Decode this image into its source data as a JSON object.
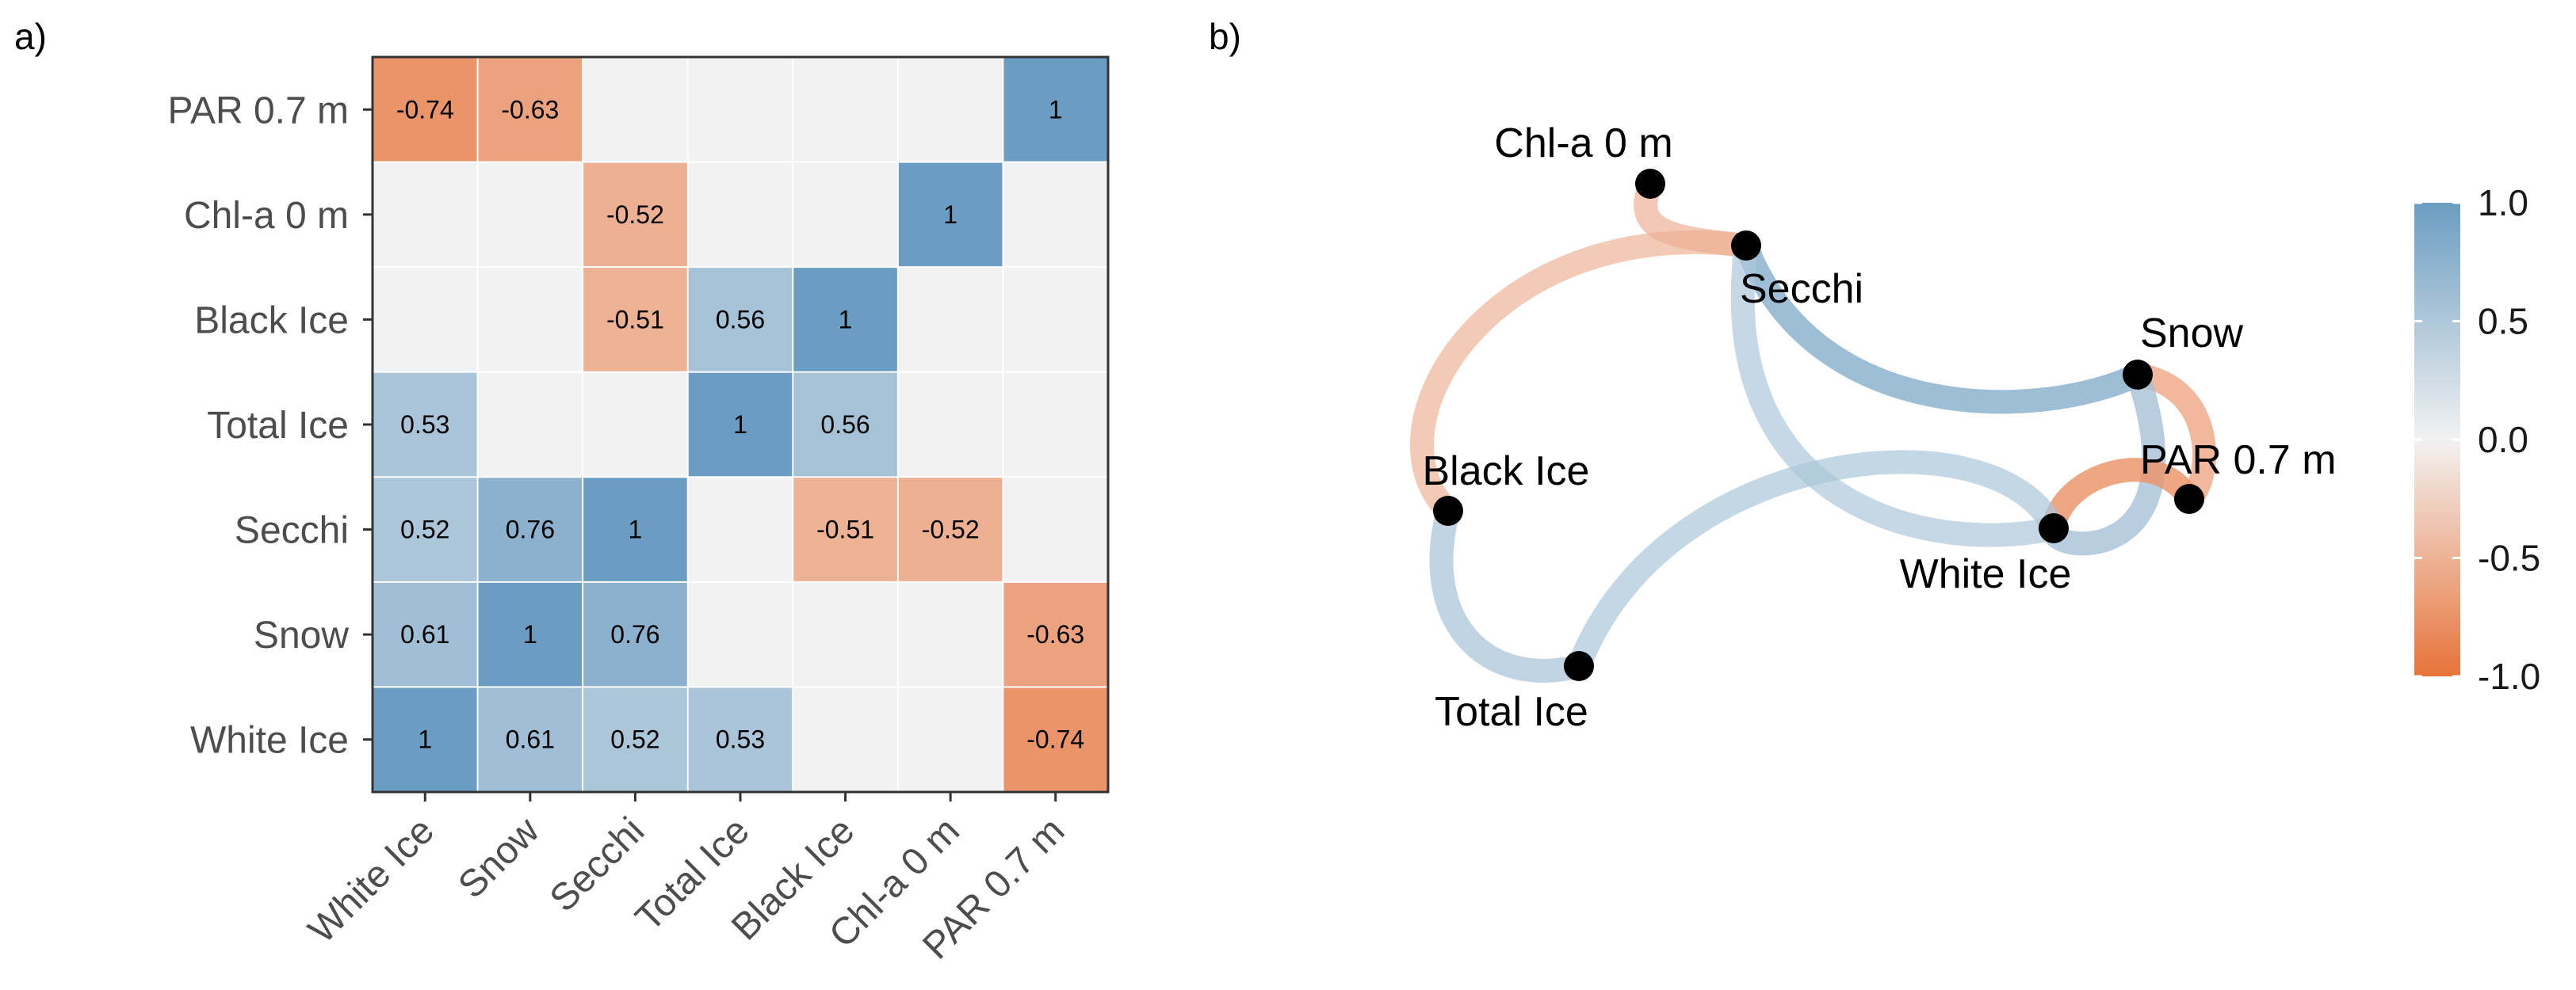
{
  "panels": {
    "a_label": "a)",
    "b_label": "b)"
  },
  "chart_data": [
    {
      "type": "heatmap",
      "panel": "a)",
      "title": "",
      "xlabel": "",
      "ylabel": "",
      "x_categories": [
        "White Ice",
        "Snow",
        "Secchi",
        "Total Ice",
        "Black Ice",
        "Chl-a 0 m",
        "PAR 0.7 m"
      ],
      "y_categories": [
        "PAR 0.7 m",
        "Chl-a 0 m",
        "Black Ice",
        "Total Ice",
        "Secchi",
        "Snow",
        "White Ice"
      ],
      "cells": [
        {
          "x": "White Ice",
          "y": "PAR 0.7 m",
          "value": -0.74,
          "label": "-0.74"
        },
        {
          "x": "Snow",
          "y": "PAR 0.7 m",
          "value": -0.63,
          "label": "-0.63"
        },
        {
          "x": "PAR 0.7 m",
          "y": "PAR 0.7 m",
          "value": 1,
          "label": "1"
        },
        {
          "x": "Secchi",
          "y": "Chl-a 0 m",
          "value": -0.52,
          "label": "-0.52"
        },
        {
          "x": "Chl-a 0 m",
          "y": "Chl-a 0 m",
          "value": 1,
          "label": "1"
        },
        {
          "x": "Secchi",
          "y": "Black Ice",
          "value": -0.51,
          "label": "-0.51"
        },
        {
          "x": "Total Ice",
          "y": "Black Ice",
          "value": 0.56,
          "label": "0.56"
        },
        {
          "x": "Black Ice",
          "y": "Black Ice",
          "value": 1,
          "label": "1"
        },
        {
          "x": "White Ice",
          "y": "Total Ice",
          "value": 0.53,
          "label": "0.53"
        },
        {
          "x": "Total Ice",
          "y": "Total Ice",
          "value": 1,
          "label": "1"
        },
        {
          "x": "Black Ice",
          "y": "Total Ice",
          "value": 0.56,
          "label": "0.56"
        },
        {
          "x": "White Ice",
          "y": "Secchi",
          "value": 0.52,
          "label": "0.52"
        },
        {
          "x": "Snow",
          "y": "Secchi",
          "value": 0.76,
          "label": "0.76"
        },
        {
          "x": "Secchi",
          "y": "Secchi",
          "value": 1,
          "label": "1"
        },
        {
          "x": "Black Ice",
          "y": "Secchi",
          "value": -0.51,
          "label": "-0.51"
        },
        {
          "x": "Chl-a 0 m",
          "y": "Secchi",
          "value": -0.52,
          "label": "-0.52"
        },
        {
          "x": "White Ice",
          "y": "Snow",
          "value": 0.61,
          "label": "0.61"
        },
        {
          "x": "Snow",
          "y": "Snow",
          "value": 1,
          "label": "1"
        },
        {
          "x": "Secchi",
          "y": "Snow",
          "value": 0.76,
          "label": "0.76"
        },
        {
          "x": "PAR 0.7 m",
          "y": "Snow",
          "value": -0.63,
          "label": "-0.63"
        },
        {
          "x": "White Ice",
          "y": "White Ice",
          "value": 1,
          "label": "1"
        },
        {
          "x": "Snow",
          "y": "White Ice",
          "value": 0.61,
          "label": "0.61"
        },
        {
          "x": "Secchi",
          "y": "White Ice",
          "value": 0.52,
          "label": "0.52"
        },
        {
          "x": "Total Ice",
          "y": "White Ice",
          "value": 0.53,
          "label": "0.53"
        },
        {
          "x": "PAR 0.7 m",
          "y": "White Ice",
          "value": -0.74,
          "label": "-0.74"
        }
      ],
      "empty_cell_color": "#f2f2f2"
    },
    {
      "type": "network",
      "panel": "b)",
      "title": "",
      "nodes": [
        "Chl-a 0 m",
        "Secchi",
        "Snow",
        "PAR 0.7 m",
        "White Ice",
        "Black Ice",
        "Total Ice"
      ],
      "edges": [
        {
          "source": "Chl-a 0 m",
          "target": "Secchi",
          "value": -0.52
        },
        {
          "source": "Secchi",
          "target": "Black Ice",
          "value": -0.51
        },
        {
          "source": "Secchi",
          "target": "Snow",
          "value": 0.76
        },
        {
          "source": "Secchi",
          "target": "White Ice",
          "value": 0.52
        },
        {
          "source": "Snow",
          "target": "PAR 0.7 m",
          "value": -0.63
        },
        {
          "source": "Snow",
          "target": "White Ice",
          "value": 0.61
        },
        {
          "source": "White Ice",
          "target": "PAR 0.7 m",
          "value": -0.74
        },
        {
          "source": "White Ice",
          "target": "Total Ice",
          "value": 0.53
        },
        {
          "source": "Black Ice",
          "target": "Total Ice",
          "value": 0.56
        }
      ],
      "legend": {
        "placement": "right",
        "range": [
          -1.0,
          1.0
        ],
        "ticks": [
          "1.0",
          "0.5",
          "0.0",
          "-0.5",
          "-1.0"
        ]
      }
    }
  ],
  "colors": {
    "negative": "#e8733a",
    "neutral": "#f2f2f2",
    "positive": "#6b9dc2",
    "node": "#000000"
  }
}
